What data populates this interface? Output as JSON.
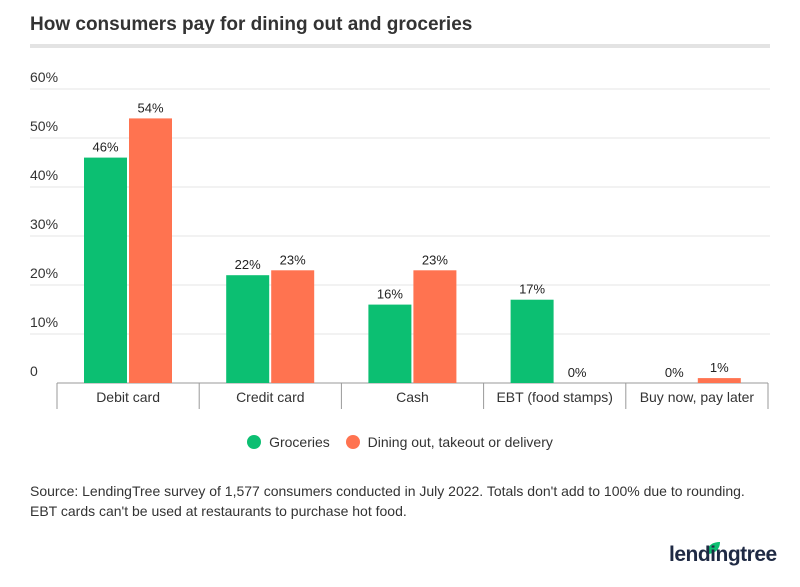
{
  "chart_data": {
    "type": "bar",
    "title": "How consumers pay for dining out and groceries",
    "categories": [
      "Debit card",
      "Credit card",
      "Cash",
      "EBT (food stamps)",
      "Buy now, pay later"
    ],
    "series": [
      {
        "name": "Groceries",
        "color": "#0cbf72",
        "values": [
          46,
          22,
          16,
          17,
          0
        ]
      },
      {
        "name": "Dining out, takeout or delivery",
        "color": "#ff7350",
        "values": [
          54,
          23,
          23,
          0,
          1
        ]
      }
    ],
    "ylim": [
      0,
      60
    ],
    "yticks": [
      0,
      10,
      20,
      30,
      40,
      50,
      60
    ],
    "ytick_labels": [
      "0",
      "10%",
      "20%",
      "30%",
      "40%",
      "50%",
      "60%"
    ],
    "data_labels": [
      [
        "46%",
        "22%",
        "16%",
        "17%",
        "0%"
      ],
      [
        "54%",
        "23%",
        "23%",
        "0%",
        "1%"
      ]
    ],
    "grid": true,
    "legend_position": "bottom"
  },
  "source": "Source: LendingTree survey of 1,577 consumers conducted in July 2022. Totals don't add to 100%  due to rounding. EBT cards can't be used at restaurants to purchase hot food.",
  "logo": "lendingtree"
}
